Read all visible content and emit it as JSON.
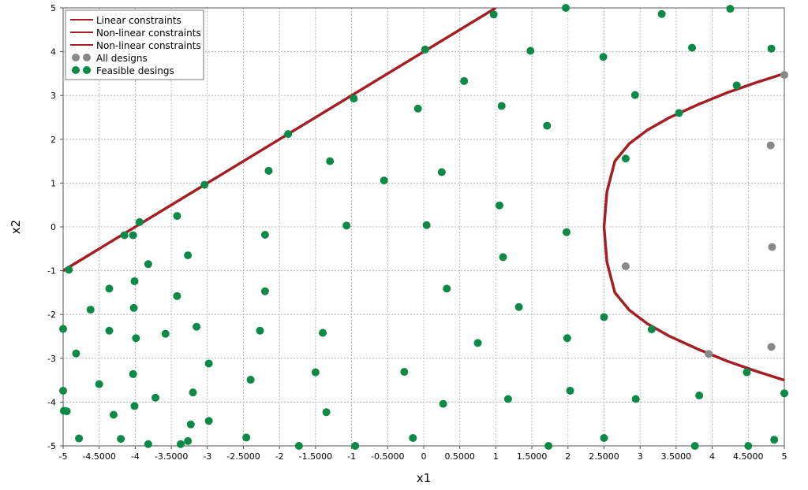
{
  "colors": {
    "constraint": "#a31f24",
    "all": "#888888",
    "feasible": "#0a8a46",
    "grid": "#b8b8b8",
    "axis": "#555555"
  },
  "chart_data": {
    "type": "scatter",
    "xlabel": "x1",
    "ylabel": "x2",
    "xlim": [
      -5,
      5
    ],
    "ylim": [
      -5,
      5
    ],
    "grid": true,
    "legend_position": "top-left",
    "x_ticks": [
      "-5",
      "-4.5000",
      "-4",
      "-3.5000",
      "-3",
      "-2.5000",
      "-2",
      "-1.5000",
      "-1",
      "-0.5000",
      "0",
      "0.5000",
      "1",
      "1.5000",
      "2",
      "2.5000",
      "3",
      "3.5000",
      "4",
      "4.5000",
      "5"
    ],
    "x_tick_values": [
      -5,
      -4.5,
      -4,
      -3.5,
      -3,
      -2.5,
      -2,
      -1.5,
      -1,
      -0.5,
      0,
      0.5,
      1,
      1.5,
      2,
      2.5,
      3,
      3.5,
      4,
      4.5,
      5
    ],
    "y_ticks": [
      "5",
      "4",
      "3",
      "2",
      "1",
      "0",
      "-1",
      "-2",
      "-3",
      "-4",
      "-5"
    ],
    "y_tick_values": [
      5,
      4,
      3,
      2,
      1,
      0,
      -1,
      -2,
      -3,
      -4,
      -5
    ],
    "legend": [
      {
        "label": "Linear constraints",
        "kind": "line"
      },
      {
        "label": "Non-linear constraints",
        "kind": "line"
      },
      {
        "label": "Non-linear constraints",
        "kind": "line"
      },
      {
        "label": "All designs",
        "kind": "dots-all"
      },
      {
        "label": "Feasible desings",
        "kind": "dots-feasible"
      }
    ],
    "linear_constraint": {
      "name": "Linear constraints",
      "x": [
        -5,
        1
      ],
      "y": [
        -1,
        5
      ]
    },
    "nonlinear_constraint": {
      "name": "Non-linear constraints",
      "x": [
        5.0,
        4.6,
        4.2,
        3.8,
        3.4,
        3.1,
        2.85,
        2.65,
        2.54,
        2.5,
        2.54,
        2.65,
        2.85,
        3.1,
        3.4,
        3.8,
        4.2,
        4.6,
        5.0
      ],
      "y": [
        3.5,
        3.29,
        3.06,
        2.79,
        2.49,
        2.21,
        1.9,
        1.5,
        0.8,
        0.0,
        -0.8,
        -1.5,
        -1.9,
        -2.21,
        -2.49,
        -2.79,
        -3.06,
        -3.29,
        -3.5
      ]
    },
    "all_designs": {
      "name": "All designs",
      "x": [
        2.8,
        3.95,
        4.82,
        4.83,
        4.81,
        5.0
      ],
      "y": [
        -0.9,
        -2.9,
        -2.74,
        -0.46,
        1.86,
        3.47
      ]
    },
    "feasible_designs": {
      "name": "Feasible desings",
      "x": [
        -4.95,
        -4.78,
        -4.92,
        -4.82,
        -4.62,
        -4.5,
        -4.36,
        -4.36,
        -4.2,
        -4.03,
        -3.99,
        -4.02,
        -4.01,
        -4.01,
        -3.82,
        -3.72,
        -3.58,
        -3.42,
        -3.42,
        -3.27,
        -3.23,
        -3.2,
        -3.15,
        -3.04,
        -2.98,
        -2.46,
        -2.4,
        -2.27,
        -2.2,
        -2.2,
        -2.15,
        -1.88,
        -1.73,
        -1.5,
        -1.4,
        -1.35,
        -1.3,
        -1.07,
        -0.97,
        -0.95,
        -0.55,
        -0.27,
        -0.15,
        -0.08,
        0.02,
        0.04,
        0.25,
        0.27,
        0.32,
        0.56,
        0.75,
        0.97,
        1.05,
        1.08,
        1.1,
        1.17,
        1.32,
        1.48,
        1.71,
        1.73,
        1.97,
        1.98,
        1.99,
        2.03,
        2.49,
        2.5,
        2.5,
        2.8,
        2.93,
        2.94,
        3.16,
        3.3,
        3.54,
        3.72,
        3.76,
        3.82,
        4.25,
        4.34,
        4.48,
        4.5,
        4.82,
        4.86,
        5.0,
        -5.0,
        -5.0,
        -4.99,
        -4.3,
        -4.03,
        -3.94,
        -4.15,
        -3.82,
        -3.27,
        -2.98,
        -3.37
      ],
      "y": [
        -4.21,
        -4.83,
        -0.98,
        -2.89,
        -1.89,
        -3.59,
        -2.37,
        -1.41,
        -4.84,
        -3.36,
        -2.54,
        -1.85,
        -4.09,
        -1.24,
        -4.96,
        -3.9,
        -2.44,
        -1.58,
        0.25,
        -0.65,
        -4.51,
        -3.78,
        -2.28,
        0.96,
        -3.12,
        -4.81,
        -3.49,
        -2.37,
        -1.47,
        -0.18,
        1.28,
        2.12,
        -5.0,
        -3.32,
        -2.42,
        -4.23,
        1.5,
        0.03,
        2.93,
        -5.0,
        1.06,
        -3.31,
        -4.82,
        2.7,
        4.05,
        0.04,
        1.25,
        -4.04,
        -1.41,
        3.33,
        -2.65,
        4.85,
        0.49,
        2.76,
        -0.69,
        -3.93,
        -1.83,
        4.02,
        2.31,
        -5.0,
        5.0,
        -0.12,
        -2.54,
        -3.74,
        3.88,
        -2.06,
        -4.82,
        1.56,
        3.01,
        -3.93,
        -2.34,
        4.86,
        2.6,
        4.09,
        -5.0,
        -3.85,
        4.98,
        3.23,
        -3.32,
        -5.0,
        4.07,
        -4.86,
        -3.8,
        -2.33,
        -3.74,
        -4.2,
        -4.29,
        -0.19,
        0.11,
        -0.19,
        -0.85,
        -4.89,
        -4.43,
        -4.96
      ]
    }
  }
}
